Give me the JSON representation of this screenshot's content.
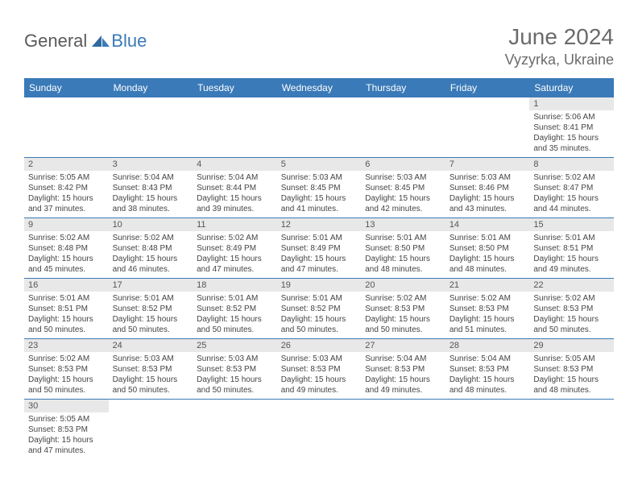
{
  "logo": {
    "general": "General",
    "blue": "Blue"
  },
  "title": "June 2024",
  "location": "Vyzyrka, Ukraine",
  "headers": [
    "Sunday",
    "Monday",
    "Tuesday",
    "Wednesday",
    "Thursday",
    "Friday",
    "Saturday"
  ],
  "header_bg": "#3a7ab8",
  "header_fg": "#ffffff",
  "daynum_bg": "#e8e8e8",
  "border_color": "#3a7ab8",
  "weeks": [
    [
      null,
      null,
      null,
      null,
      null,
      null,
      {
        "d": "1",
        "sr": "Sunrise: 5:06 AM",
        "ss": "Sunset: 8:41 PM",
        "dl1": "Daylight: 15 hours",
        "dl2": "and 35 minutes."
      }
    ],
    [
      {
        "d": "2",
        "sr": "Sunrise: 5:05 AM",
        "ss": "Sunset: 8:42 PM",
        "dl1": "Daylight: 15 hours",
        "dl2": "and 37 minutes."
      },
      {
        "d": "3",
        "sr": "Sunrise: 5:04 AM",
        "ss": "Sunset: 8:43 PM",
        "dl1": "Daylight: 15 hours",
        "dl2": "and 38 minutes."
      },
      {
        "d": "4",
        "sr": "Sunrise: 5:04 AM",
        "ss": "Sunset: 8:44 PM",
        "dl1": "Daylight: 15 hours",
        "dl2": "and 39 minutes."
      },
      {
        "d": "5",
        "sr": "Sunrise: 5:03 AM",
        "ss": "Sunset: 8:45 PM",
        "dl1": "Daylight: 15 hours",
        "dl2": "and 41 minutes."
      },
      {
        "d": "6",
        "sr": "Sunrise: 5:03 AM",
        "ss": "Sunset: 8:45 PM",
        "dl1": "Daylight: 15 hours",
        "dl2": "and 42 minutes."
      },
      {
        "d": "7",
        "sr": "Sunrise: 5:03 AM",
        "ss": "Sunset: 8:46 PM",
        "dl1": "Daylight: 15 hours",
        "dl2": "and 43 minutes."
      },
      {
        "d": "8",
        "sr": "Sunrise: 5:02 AM",
        "ss": "Sunset: 8:47 PM",
        "dl1": "Daylight: 15 hours",
        "dl2": "and 44 minutes."
      }
    ],
    [
      {
        "d": "9",
        "sr": "Sunrise: 5:02 AM",
        "ss": "Sunset: 8:48 PM",
        "dl1": "Daylight: 15 hours",
        "dl2": "and 45 minutes."
      },
      {
        "d": "10",
        "sr": "Sunrise: 5:02 AM",
        "ss": "Sunset: 8:48 PM",
        "dl1": "Daylight: 15 hours",
        "dl2": "and 46 minutes."
      },
      {
        "d": "11",
        "sr": "Sunrise: 5:02 AM",
        "ss": "Sunset: 8:49 PM",
        "dl1": "Daylight: 15 hours",
        "dl2": "and 47 minutes."
      },
      {
        "d": "12",
        "sr": "Sunrise: 5:01 AM",
        "ss": "Sunset: 8:49 PM",
        "dl1": "Daylight: 15 hours",
        "dl2": "and 47 minutes."
      },
      {
        "d": "13",
        "sr": "Sunrise: 5:01 AM",
        "ss": "Sunset: 8:50 PM",
        "dl1": "Daylight: 15 hours",
        "dl2": "and 48 minutes."
      },
      {
        "d": "14",
        "sr": "Sunrise: 5:01 AM",
        "ss": "Sunset: 8:50 PM",
        "dl1": "Daylight: 15 hours",
        "dl2": "and 48 minutes."
      },
      {
        "d": "15",
        "sr": "Sunrise: 5:01 AM",
        "ss": "Sunset: 8:51 PM",
        "dl1": "Daylight: 15 hours",
        "dl2": "and 49 minutes."
      }
    ],
    [
      {
        "d": "16",
        "sr": "Sunrise: 5:01 AM",
        "ss": "Sunset: 8:51 PM",
        "dl1": "Daylight: 15 hours",
        "dl2": "and 50 minutes."
      },
      {
        "d": "17",
        "sr": "Sunrise: 5:01 AM",
        "ss": "Sunset: 8:52 PM",
        "dl1": "Daylight: 15 hours",
        "dl2": "and 50 minutes."
      },
      {
        "d": "18",
        "sr": "Sunrise: 5:01 AM",
        "ss": "Sunset: 8:52 PM",
        "dl1": "Daylight: 15 hours",
        "dl2": "and 50 minutes."
      },
      {
        "d": "19",
        "sr": "Sunrise: 5:01 AM",
        "ss": "Sunset: 8:52 PM",
        "dl1": "Daylight: 15 hours",
        "dl2": "and 50 minutes."
      },
      {
        "d": "20",
        "sr": "Sunrise: 5:02 AM",
        "ss": "Sunset: 8:53 PM",
        "dl1": "Daylight: 15 hours",
        "dl2": "and 50 minutes."
      },
      {
        "d": "21",
        "sr": "Sunrise: 5:02 AM",
        "ss": "Sunset: 8:53 PM",
        "dl1": "Daylight: 15 hours",
        "dl2": "and 51 minutes."
      },
      {
        "d": "22",
        "sr": "Sunrise: 5:02 AM",
        "ss": "Sunset: 8:53 PM",
        "dl1": "Daylight: 15 hours",
        "dl2": "and 50 minutes."
      }
    ],
    [
      {
        "d": "23",
        "sr": "Sunrise: 5:02 AM",
        "ss": "Sunset: 8:53 PM",
        "dl1": "Daylight: 15 hours",
        "dl2": "and 50 minutes."
      },
      {
        "d": "24",
        "sr": "Sunrise: 5:03 AM",
        "ss": "Sunset: 8:53 PM",
        "dl1": "Daylight: 15 hours",
        "dl2": "and 50 minutes."
      },
      {
        "d": "25",
        "sr": "Sunrise: 5:03 AM",
        "ss": "Sunset: 8:53 PM",
        "dl1": "Daylight: 15 hours",
        "dl2": "and 50 minutes."
      },
      {
        "d": "26",
        "sr": "Sunrise: 5:03 AM",
        "ss": "Sunset: 8:53 PM",
        "dl1": "Daylight: 15 hours",
        "dl2": "and 49 minutes."
      },
      {
        "d": "27",
        "sr": "Sunrise: 5:04 AM",
        "ss": "Sunset: 8:53 PM",
        "dl1": "Daylight: 15 hours",
        "dl2": "and 49 minutes."
      },
      {
        "d": "28",
        "sr": "Sunrise: 5:04 AM",
        "ss": "Sunset: 8:53 PM",
        "dl1": "Daylight: 15 hours",
        "dl2": "and 48 minutes."
      },
      {
        "d": "29",
        "sr": "Sunrise: 5:05 AM",
        "ss": "Sunset: 8:53 PM",
        "dl1": "Daylight: 15 hours",
        "dl2": "and 48 minutes."
      }
    ],
    [
      {
        "d": "30",
        "sr": "Sunrise: 5:05 AM",
        "ss": "Sunset: 8:53 PM",
        "dl1": "Daylight: 15 hours",
        "dl2": "and 47 minutes."
      },
      null,
      null,
      null,
      null,
      null,
      null
    ]
  ]
}
